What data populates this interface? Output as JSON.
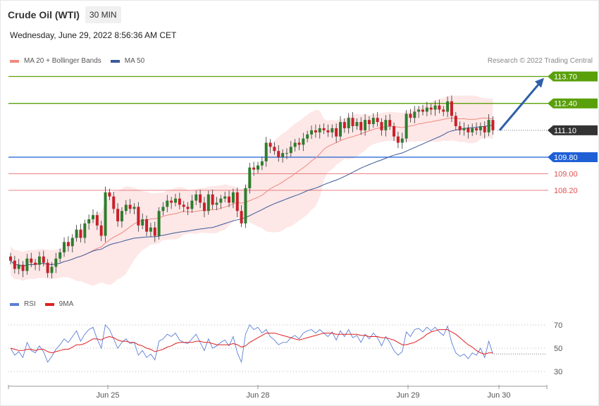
{
  "header": {
    "title": "Crude Oil (WTI)",
    "interval": "30 MIN",
    "timestamp": "Wednesday, June 29, 2022 8:56:36 AM CET"
  },
  "legend_main": [
    {
      "label": "MA 20 + Bollinger Bands",
      "color": "#f08a80"
    },
    {
      "label": "MA 50",
      "color": "#3a5a9a"
    }
  ],
  "legend_rsi": [
    {
      "label": "RSI",
      "color": "#5b7fd6"
    },
    {
      "label": "9MA",
      "color": "#e02020"
    }
  ],
  "copyright": "Research © 2022 Trading Central",
  "colors": {
    "resistance": "#5aa00a",
    "support": "#1f5fd6",
    "support_light": "#e05050",
    "current": "#333333",
    "up": "#2e7d2e",
    "down": "#c8202a",
    "band": "#fde3e3",
    "arrow": "#2f5fa8"
  },
  "chart_data": {
    "type": "candlestick",
    "x_tick_labels": [
      "Jun 25",
      "Jun 28",
      "Jun 29",
      "Jun 30"
    ],
    "levels": [
      {
        "value": 113.7,
        "label": "113.70",
        "role": "resistance"
      },
      {
        "value": 112.4,
        "label": "112.40",
        "role": "resistance"
      },
      {
        "value": 111.1,
        "label": "111.10",
        "role": "current"
      },
      {
        "value": 109.8,
        "label": "109.80",
        "role": "support"
      },
      {
        "value": 109.0,
        "label": "109.00",
        "role": "support_light"
      },
      {
        "value": 108.2,
        "label": "108.20",
        "role": "support_light"
      }
    ],
    "close": [
      104.8,
      104.4,
      104.6,
      104.3,
      104.9,
      104.7,
      104.6,
      105.0,
      104.7,
      104.2,
      104.5,
      104.9,
      105.2,
      105.7,
      105.5,
      105.9,
      106.3,
      105.9,
      106.6,
      106.8,
      107.0,
      106.5,
      106.0,
      108.1,
      107.9,
      107.3,
      106.7,
      107.2,
      107.5,
      107.3,
      107.4,
      106.5,
      106.8,
      106.2,
      106.4,
      106.0,
      107.2,
      107.4,
      107.7,
      107.6,
      107.8,
      107.5,
      107.4,
      107.3,
      107.7,
      108.0,
      107.6,
      107.2,
      108.0,
      107.5,
      107.6,
      107.8,
      107.9,
      107.6,
      108.1,
      107.2,
      106.6,
      108.3,
      109.3,
      109.2,
      109.4,
      109.6,
      110.5,
      110.3,
      110.1,
      109.8,
      110.0,
      110.0,
      110.3,
      110.5,
      110.4,
      110.7,
      110.9,
      111.1,
      111.0,
      111.2,
      111.1,
      111.0,
      111.2,
      110.8,
      111.5,
      111.2,
      111.7,
      111.3,
      111.5,
      111.1,
      111.6,
      111.4,
      111.7,
      111.5,
      111.1,
      111.6,
      111.3,
      110.8,
      110.5,
      110.7,
      111.9,
      111.7,
      112.0,
      112.1,
      112.0,
      112.2,
      112.1,
      112.3,
      112.1,
      112.0,
      112.5,
      111.8,
      111.3,
      111.1,
      111.2,
      111.0,
      111.2,
      111.1,
      111.3,
      111.0,
      111.6,
      111.1
    ],
    "rsi_levels": [
      70,
      50,
      30
    ],
    "rsi": [
      50,
      44,
      47,
      42,
      55,
      48,
      46,
      52,
      47,
      38,
      43,
      49,
      53,
      58,
      55,
      60,
      65,
      56,
      62,
      66,
      68,
      58,
      50,
      70,
      66,
      58,
      50,
      55,
      58,
      54,
      55,
      44,
      48,
      42,
      45,
      40,
      56,
      58,
      62,
      60,
      63,
      57,
      55,
      54,
      58,
      62,
      55,
      48,
      58,
      50,
      52,
      55,
      57,
      52,
      60,
      46,
      38,
      62,
      70,
      66,
      68,
      63,
      66,
      60,
      57,
      53,
      55,
      55,
      59,
      61,
      58,
      63,
      65,
      66,
      63,
      66,
      63,
      60,
      64,
      57,
      65,
      60,
      66,
      59,
      61,
      55,
      62,
      58,
      63,
      59,
      52,
      60,
      55,
      48,
      44,
      47,
      64,
      60,
      66,
      67,
      64,
      68,
      65,
      68,
      64,
      61,
      69,
      55,
      46,
      43,
      45,
      41,
      46,
      44,
      50,
      42,
      56,
      45
    ],
    "rsi_ma": [
      50,
      49,
      48,
      48,
      49,
      49,
      48,
      49,
      49,
      47,
      46,
      47,
      48,
      49,
      49,
      51,
      53,
      53,
      54,
      56,
      58,
      58,
      57,
      59,
      60,
      59,
      57,
      56,
      56,
      55,
      55,
      53,
      52,
      50,
      49,
      47,
      48,
      49,
      51,
      52,
      54,
      55,
      55,
      55,
      55,
      56,
      56,
      55,
      55,
      54,
      53,
      53,
      53,
      53,
      54,
      53,
      51,
      52,
      55,
      57,
      59,
      61,
      63,
      63,
      63,
      62,
      61,
      60,
      59,
      58,
      57,
      58,
      59,
      60,
      61,
      62,
      63,
      63,
      63,
      62,
      62,
      62,
      62,
      62,
      62,
      61,
      61,
      60,
      60,
      60,
      59,
      59,
      58,
      57,
      55,
      53,
      53,
      54,
      55,
      57,
      59,
      62,
      64,
      65,
      66,
      66,
      66,
      64,
      62,
      59,
      56,
      53,
      51,
      48,
      46,
      45,
      46,
      46
    ]
  }
}
